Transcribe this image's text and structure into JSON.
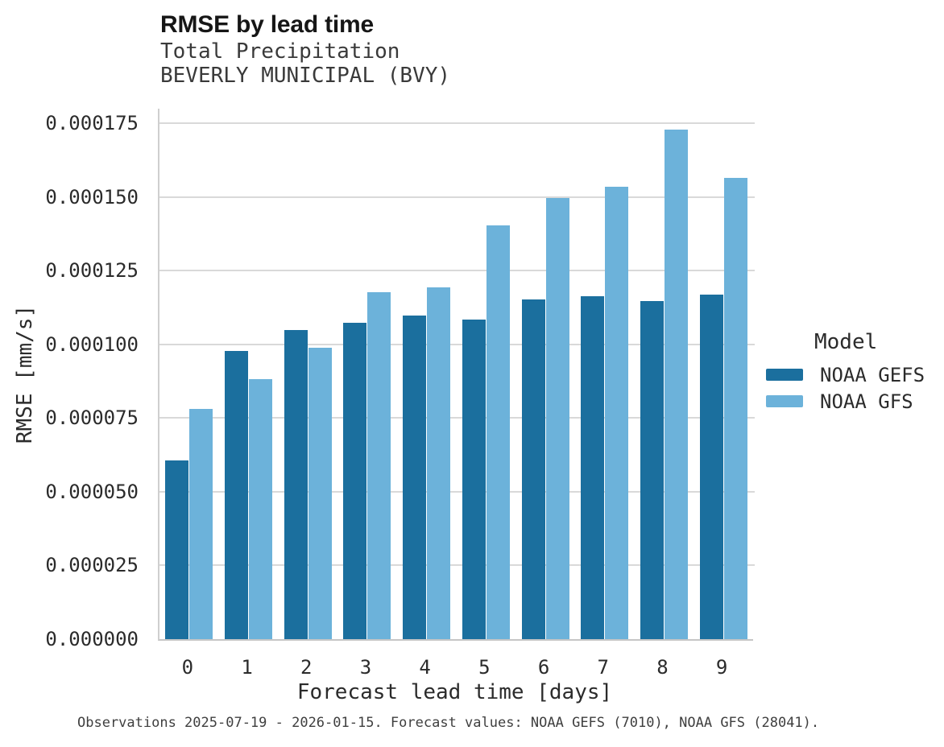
{
  "header": {
    "title": "RMSE by lead time",
    "subtitle_line1": "Total Precipitation",
    "subtitle_line2": "BEVERLY MUNICIPAL (BVY)"
  },
  "footer": {
    "text": "Observations 2025-07-19 - 2026-01-15. Forecast values: NOAA GEFS (7010), NOAA GFS (28041)."
  },
  "palette": {
    "noaa_gefs": "#1b6f9e",
    "noaa_gfs": "#6cb2da",
    "gridline": "#d9d9d9",
    "spine": "#c6c6c6",
    "text": "#2b2b2b"
  },
  "chart_data": {
    "type": "bar",
    "title": "RMSE by lead time",
    "subtitle": [
      "Total Precipitation",
      "BEVERLY MUNICIPAL (BVY)"
    ],
    "xlabel": "Forecast lead time [days]",
    "ylabel": "RMSE [mm/s]",
    "categories": [
      "0",
      "1",
      "2",
      "3",
      "4",
      "5",
      "6",
      "7",
      "8",
      "9"
    ],
    "series": [
      {
        "name": "NOAA GEFS",
        "color": "#1b6f9e",
        "values": [
          6.07e-05,
          9.78e-05,
          0.0001049,
          0.0001073,
          0.0001099,
          0.0001085,
          0.0001152,
          0.0001164,
          0.0001146,
          0.000117
        ]
      },
      {
        "name": "NOAA GFS",
        "color": "#6cb2da",
        "values": [
          7.8e-05,
          8.81e-05,
          9.89e-05,
          0.0001176,
          0.0001193,
          0.0001404,
          0.0001497,
          0.0001534,
          0.0001729,
          0.0001565
        ]
      }
    ],
    "ylim": [
      0,
      0.00018
    ],
    "yticks": [
      0,
      2.5e-05,
      5e-05,
      7.5e-05,
      0.0001,
      0.000125,
      0.00015,
      0.000175
    ],
    "ytick_labels": [
      "0.000000",
      "0.000025",
      "0.000050",
      "0.000075",
      "0.000100",
      "0.000125",
      "0.000150",
      "0.000175"
    ],
    "grid": "horizontal",
    "legend": {
      "title": "Model",
      "position": "right",
      "entries": [
        "NOAA GEFS",
        "NOAA GFS"
      ]
    }
  }
}
